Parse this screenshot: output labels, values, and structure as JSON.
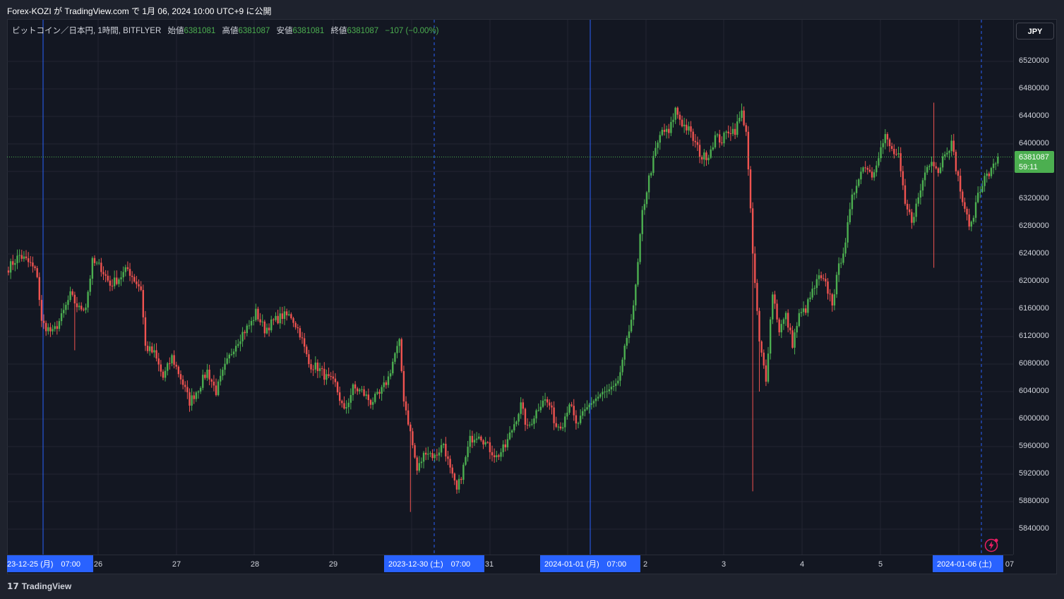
{
  "header": {
    "published_line": "Forex-KOZI が TradingView.com で 1月 06, 2024 10:00 UTC+9 に公開"
  },
  "legend": {
    "symbol": "ビットコイン／日本円, 1時間, BITFLYER",
    "open_label": "始値",
    "open_value": "6381081",
    "high_label": "高値",
    "high_value": "6381087",
    "low_label": "安値",
    "low_value": "6381081",
    "close_label": "終値",
    "close_value": "6381087",
    "change": "−107 (−0.00%)"
  },
  "currency_button": "JPY",
  "price_badge": {
    "price": "6381087",
    "countdown": "59:11"
  },
  "footer": {
    "logo_glyph": "𝟭𝟳",
    "brand": "TradingView"
  },
  "colors": {
    "up": "#4caf50",
    "down": "#f05350",
    "background": "#131722",
    "grid": "#2a2e39",
    "session_line": "#2962ff",
    "bolt": "#e91e63"
  },
  "chart_data": {
    "type": "candlestick",
    "title": "",
    "xlabel": "",
    "ylabel": "",
    "ylim": [
      5800000,
      6550000
    ],
    "y_ticks": [
      "6520000",
      "6480000",
      "6440000",
      "6400000",
      "6360000",
      "6320000",
      "6280000",
      "6240000",
      "6200000",
      "6160000",
      "6120000",
      "6080000",
      "6040000",
      "6000000",
      "5960000",
      "5920000",
      "5880000",
      "5840000"
    ],
    "x_ticks": [
      "26",
      "27",
      "28",
      "29",
      "31",
      "2",
      "3",
      "4",
      "5",
      "07"
    ],
    "x_badges": [
      "23-12-25 (月)　07:00",
      "2023-12-30 (土)　07:00",
      "2024-01-01 (月)　07:00",
      "2024-01-06 (土)"
    ],
    "last_price": 6381087,
    "keypoints": [
      [
        0,
        6220000
      ],
      [
        5,
        6238000
      ],
      [
        10,
        6225000
      ],
      [
        13,
        6210000
      ],
      [
        15,
        6140000
      ],
      [
        20,
        6125000
      ],
      [
        24,
        6148000
      ],
      [
        28,
        6180000
      ],
      [
        32,
        6160000
      ],
      [
        35,
        6165000
      ],
      [
        38,
        6228000
      ],
      [
        42,
        6220000
      ],
      [
        46,
        6195000
      ],
      [
        50,
        6205000
      ],
      [
        54,
        6218000
      ],
      [
        58,
        6198000
      ],
      [
        60,
        6190000
      ],
      [
        62,
        6105000
      ],
      [
        66,
        6095000
      ],
      [
        70,
        6060000
      ],
      [
        74,
        6090000
      ],
      [
        78,
        6060000
      ],
      [
        82,
        6025000
      ],
      [
        86,
        6045000
      ],
      [
        90,
        6070000
      ],
      [
        94,
        6040000
      ],
      [
        98,
        6075000
      ],
      [
        102,
        6105000
      ],
      [
        106,
        6125000
      ],
      [
        110,
        6140000
      ],
      [
        112,
        6155000
      ],
      [
        116,
        6130000
      ],
      [
        120,
        6142000
      ],
      [
        124,
        6150000
      ],
      [
        128,
        6150000
      ],
      [
        132,
        6125000
      ],
      [
        136,
        6080000
      ],
      [
        140,
        6075000
      ],
      [
        144,
        6060000
      ],
      [
        148,
        6050000
      ],
      [
        152,
        6010000
      ],
      [
        156,
        6045000
      ],
      [
        160,
        6040000
      ],
      [
        164,
        6025000
      ],
      [
        168,
        6035000
      ],
      [
        172,
        6060000
      ],
      [
        175,
        6095000
      ],
      [
        177,
        6110000
      ],
      [
        179,
        6030000
      ],
      [
        182,
        5980000
      ],
      [
        185,
        5925000
      ],
      [
        189,
        5955000
      ],
      [
        193,
        5945000
      ],
      [
        197,
        5965000
      ],
      [
        200,
        5925000
      ],
      [
        203,
        5895000
      ],
      [
        206,
        5930000
      ],
      [
        209,
        5970000
      ],
      [
        213,
        5980000
      ],
      [
        217,
        5960000
      ],
      [
        221,
        5945000
      ],
      [
        225,
        5960000
      ],
      [
        228,
        5985000
      ],
      [
        232,
        6020000
      ],
      [
        235,
        5985000
      ],
      [
        238,
        6005000
      ],
      [
        242,
        6030000
      ],
      [
        245,
        6020000
      ],
      [
        248,
        5990000
      ],
      [
        251,
        5995000
      ],
      [
        254,
        6025000
      ],
      [
        257,
        5990000
      ],
      [
        260,
        6005000
      ],
      [
        264,
        6025000
      ],
      [
        268,
        6035000
      ],
      [
        272,
        6040000
      ],
      [
        275,
        6045000
      ],
      [
        278,
        6080000
      ],
      [
        280,
        6120000
      ],
      [
        283,
        6160000
      ],
      [
        285,
        6225000
      ],
      [
        287,
        6300000
      ],
      [
        290,
        6350000
      ],
      [
        293,
        6390000
      ],
      [
        296,
        6420000
      ],
      [
        299,
        6415000
      ],
      [
        302,
        6450000
      ],
      [
        305,
        6430000
      ],
      [
        308,
        6420000
      ],
      [
        311,
        6400000
      ],
      [
        314,
        6380000
      ],
      [
        317,
        6385000
      ],
      [
        320,
        6410000
      ],
      [
        323,
        6405000
      ],
      [
        326,
        6420000
      ],
      [
        329,
        6420000
      ],
      [
        332,
        6445000
      ],
      [
        334,
        6420000
      ],
      [
        337,
        6240000
      ],
      [
        340,
        6110000
      ],
      [
        343,
        6060000
      ],
      [
        346,
        6185000
      ],
      [
        349,
        6130000
      ],
      [
        352,
        6150000
      ],
      [
        355,
        6110000
      ],
      [
        358,
        6150000
      ],
      [
        361,
        6160000
      ],
      [
        364,
        6185000
      ],
      [
        367,
        6205000
      ],
      [
        370,
        6195000
      ],
      [
        373,
        6170000
      ],
      [
        376,
        6220000
      ],
      [
        379,
        6260000
      ],
      [
        382,
        6320000
      ],
      [
        385,
        6355000
      ],
      [
        388,
        6370000
      ],
      [
        391,
        6355000
      ],
      [
        394,
        6385000
      ],
      [
        397,
        6410000
      ],
      [
        400,
        6390000
      ],
      [
        403,
        6380000
      ],
      [
        406,
        6310000
      ],
      [
        409,
        6290000
      ],
      [
        412,
        6320000
      ],
      [
        415,
        6360000
      ],
      [
        418,
        6380000
      ],
      [
        421,
        6360000
      ],
      [
        424,
        6390000
      ],
      [
        427,
        6400000
      ],
      [
        430,
        6350000
      ],
      [
        433,
        6300000
      ],
      [
        436,
        6280000
      ],
      [
        439,
        6330000
      ],
      [
        442,
        6350000
      ],
      [
        445,
        6360000
      ],
      [
        448,
        6381087
      ]
    ]
  }
}
